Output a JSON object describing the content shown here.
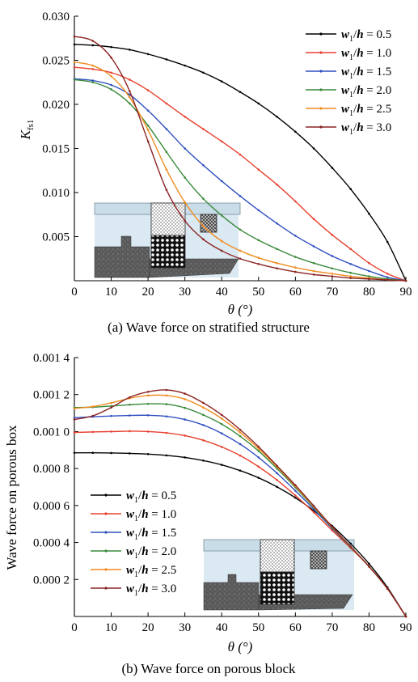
{
  "chart_data": [
    {
      "type": "line",
      "caption": "(a) Wave force on stratified structure",
      "xlabel": "θ (°)",
      "ylabel": "K",
      "ylabel_sub": "fs1",
      "xlim": [
        0,
        90
      ],
      "ylim": [
        0,
        0.03
      ],
      "xticks": [
        0,
        10,
        20,
        30,
        40,
        50,
        60,
        70,
        80,
        90
      ],
      "xtick_labels": [
        "0",
        "10",
        "20",
        "30",
        "40",
        "50",
        "60",
        "70",
        "80",
        "90"
      ],
      "yticks": [
        0.005,
        0.01,
        0.015,
        0.02,
        0.025,
        0.03
      ],
      "ytick_labels": [
        "0.005",
        "0.010",
        "0.015",
        "0.020",
        "0.025",
        "0.030"
      ],
      "legend_position": "top-right",
      "inset": "schematic of stratified structure",
      "x": [
        0,
        5,
        10,
        15,
        20,
        25,
        30,
        35,
        40,
        45,
        50,
        55,
        60,
        65,
        70,
        75,
        80,
        85,
        90
      ],
      "series": [
        {
          "name": "w1/h = 0.5",
          "label_w": "w",
          "label_sub": "1",
          "label_rest": "/h = 0.5",
          "color": "#000000",
          "values": [
            0.0268,
            0.0267,
            0.0265,
            0.0262,
            0.0257,
            0.0251,
            0.0244,
            0.0236,
            0.0226,
            0.0214,
            0.0201,
            0.0186,
            0.0169,
            0.015,
            0.0128,
            0.0104,
            0.0076,
            0.0044,
            0.0
          ]
        },
        {
          "name": "w1/h = 1.0",
          "label_w": "w",
          "label_sub": "1",
          "label_rest": "/h = 1.0",
          "color": "#e8402e",
          "values": [
            0.0242,
            0.024,
            0.0236,
            0.0228,
            0.0216,
            0.0201,
            0.0186,
            0.0172,
            0.0158,
            0.0143,
            0.0126,
            0.0109,
            0.009,
            0.007,
            0.0052,
            0.0036,
            0.002,
            0.0008,
            0.0
          ]
        },
        {
          "name": "w1/h = 1.5",
          "label_w": "w",
          "label_sub": "1",
          "label_rest": "/h = 1.5",
          "color": "#3050c0",
          "values": [
            0.0229,
            0.0227,
            0.0222,
            0.0211,
            0.0193,
            0.0172,
            0.015,
            0.0131,
            0.0113,
            0.0096,
            0.008,
            0.0065,
            0.0051,
            0.0039,
            0.0028,
            0.0019,
            0.0011,
            0.0004,
            0.0
          ]
        },
        {
          "name": "w1/h = 2.0",
          "label_w": "w",
          "label_sub": "1",
          "label_rest": "/h = 2.0",
          "color": "#3a8a3a",
          "values": [
            0.0228,
            0.0225,
            0.0217,
            0.0201,
            0.0176,
            0.0146,
            0.0117,
            0.0093,
            0.0074,
            0.0058,
            0.0046,
            0.0036,
            0.0027,
            0.002,
            0.0014,
            0.0009,
            0.0005,
            0.0002,
            0.0
          ]
        },
        {
          "name": "w1/h = 2.5",
          "label_w": "w",
          "label_sub": "1",
          "label_rest": "/h = 2.5",
          "color": "#f08c20",
          "values": [
            0.0248,
            0.0244,
            0.0232,
            0.0208,
            0.0171,
            0.0126,
            0.0089,
            0.0062,
            0.0045,
            0.0034,
            0.0026,
            0.002,
            0.0015,
            0.0011,
            0.0008,
            0.0005,
            0.0003,
            0.0001,
            0.0
          ]
        },
        {
          "name": "w1/h = 3.0",
          "label_w": "w",
          "label_sub": "1",
          "label_rest": "/h = 3.0",
          "color": "#8b2323",
          "values": [
            0.0277,
            0.0272,
            0.0253,
            0.0215,
            0.0158,
            0.0103,
            0.0068,
            0.0047,
            0.0034,
            0.0025,
            0.0019,
            0.0014,
            0.001,
            0.0007,
            0.0005,
            0.0003,
            0.0002,
            0.0001,
            0.0
          ]
        }
      ]
    },
    {
      "type": "line",
      "caption": "(b) Wave force on porous block",
      "xlabel": "θ (°)",
      "ylabel": "Wave force on porous box",
      "xlim": [
        0,
        90
      ],
      "ylim": [
        0,
        0.0014
      ],
      "xticks": [
        0,
        10,
        20,
        30,
        40,
        50,
        60,
        70,
        80,
        90
      ],
      "xtick_labels": [
        "0",
        "10",
        "20",
        "30",
        "40",
        "50",
        "60",
        "70",
        "80",
        "90"
      ],
      "yticks": [
        0.0002,
        0.0004,
        0.0006,
        0.0008,
        0.001,
        0.0012,
        0.0014
      ],
      "ytick_labels": [
        "0.000 2",
        "0.000 4",
        "0.000 6",
        "0.000 8",
        "0.001 0",
        "0.001 2",
        "0.001 4"
      ],
      "legend_position": "bottom-left",
      "inset": "schematic of porous block",
      "x": [
        0,
        5,
        10,
        15,
        20,
        25,
        30,
        35,
        40,
        45,
        50,
        55,
        60,
        65,
        70,
        75,
        80,
        85,
        90
      ],
      "series": [
        {
          "name": "w1/h = 0.5",
          "label_w": "w",
          "label_sub": "1",
          "label_rest": "/h = 0.5",
          "color": "#000000",
          "values": [
            0.000885,
            0.000885,
            0.000884,
            0.000882,
            0.000878,
            0.000871,
            0.00086,
            0.000843,
            0.00082,
            0.000789,
            0.00075,
            0.000701,
            0.000642,
            0.000572,
            0.00049,
            0.000394,
            0.000285,
            0.000157,
            0.0
          ]
        },
        {
          "name": "w1/h = 1.0",
          "label_w": "w",
          "label_sub": "1",
          "label_rest": "/h = 1.0",
          "color": "#e8402e",
          "values": [
            0.000995,
            0.000998,
            0.001,
            0.001002,
            0.001,
            0.000993,
            0.000978,
            0.000953,
            0.000917,
            0.00087,
            0.00081,
            0.000738,
            0.000654,
            0.000563,
            0.000465,
            0.00037,
            0.00027,
            0.00015,
            0.0
          ]
        },
        {
          "name": "w1/h = 1.5",
          "label_w": "w",
          "label_sub": "1",
          "label_rest": "/h = 1.5",
          "color": "#3050c0",
          "values": [
            0.001075,
            0.00108,
            0.001084,
            0.001087,
            0.001088,
            0.001082,
            0.001065,
            0.001035,
            0.00099,
            0.000932,
            0.00086,
            0.000775,
            0.00068,
            0.00058,
            0.000475,
            0.000375,
            0.00027,
            0.00015,
            0.0
          ]
        },
        {
          "name": "w1/h = 2.0",
          "label_w": "w",
          "label_sub": "1",
          "label_rest": "/h = 2.0",
          "color": "#3a8a3a",
          "values": [
            0.00113,
            0.001132,
            0.001138,
            0.001145,
            0.00115,
            0.001148,
            0.001128,
            0.00109,
            0.00104,
            0.000975,
            0.000895,
            0.0008,
            0.000698,
            0.00059,
            0.00048,
            0.000375,
            0.00027,
            0.00015,
            0.0
          ]
        },
        {
          "name": "w1/h = 2.5",
          "label_w": "w",
          "label_sub": "1",
          "label_rest": "/h = 2.5",
          "color": "#f08c20",
          "values": [
            0.001125,
            0.001135,
            0.001155,
            0.00118,
            0.001195,
            0.001195,
            0.001175,
            0.00113,
            0.00107,
            0.000995,
            0.000908,
            0.00081,
            0.000705,
            0.000595,
            0.000483,
            0.000377,
            0.00027,
            0.00015,
            0.0
          ]
        },
        {
          "name": "w1/h = 3.0",
          "label_w": "w",
          "label_sub": "1",
          "label_rest": "/h = 3.0",
          "color": "#8b2323",
          "values": [
            0.001065,
            0.001085,
            0.00113,
            0.001185,
            0.001215,
            0.001225,
            0.001205,
            0.001155,
            0.00109,
            0.00101,
            0.000918,
            0.000815,
            0.00071,
            0.000598,
            0.000485,
            0.000378,
            0.00027,
            0.00015,
            0.0
          ]
        }
      ]
    }
  ]
}
